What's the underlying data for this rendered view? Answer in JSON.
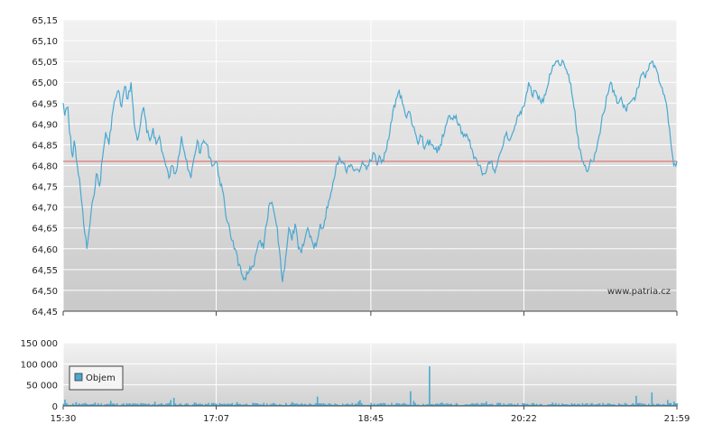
{
  "watermark": "www.patria.cz",
  "colors": {
    "price_line": "#4aa8d0",
    "reference_line": "#e06060",
    "volume_bar": "#4aa8d0",
    "grid": "#ffffff"
  },
  "chart_data": [
    {
      "type": "line",
      "name": "price",
      "title": "",
      "xlabel": "",
      "ylabel": "",
      "x_tick_labels": [
        "15:30",
        "17:07",
        "18:45",
        "20:22",
        "21:59"
      ],
      "y_tick_labels": [
        "65,15",
        "65,10",
        "65,05",
        "65,00",
        "64,95",
        "64,90",
        "64,85",
        "64,80",
        "64,75",
        "64,70",
        "64,65",
        "64,60",
        "64,55",
        "64,50",
        "64,45"
      ],
      "ylim": [
        64.45,
        65.15
      ],
      "reference_value": 64.81,
      "grid": true,
      "points": [
        [
          "15:30",
          64.95
        ],
        [
          "15:31",
          64.92
        ],
        [
          "15:33",
          64.94
        ],
        [
          "15:34",
          64.88
        ],
        [
          "15:36",
          64.82
        ],
        [
          "15:37",
          64.86
        ],
        [
          "15:39",
          64.8
        ],
        [
          "15:41",
          64.74
        ],
        [
          "15:43",
          64.66
        ],
        [
          "15:45",
          64.6
        ],
        [
          "15:47",
          64.66
        ],
        [
          "15:49",
          64.72
        ],
        [
          "15:51",
          64.78
        ],
        [
          "15:53",
          64.75
        ],
        [
          "15:55",
          64.82
        ],
        [
          "15:57",
          64.88
        ],
        [
          "15:59",
          64.85
        ],
        [
          "16:01",
          64.92
        ],
        [
          "16:03",
          64.96
        ],
        [
          "16:05",
          64.98
        ],
        [
          "16:07",
          64.94
        ],
        [
          "16:09",
          64.99
        ],
        [
          "16:11",
          64.96
        ],
        [
          "16:13",
          65.0
        ],
        [
          "16:15",
          64.9
        ],
        [
          "16:17",
          64.86
        ],
        [
          "16:19",
          64.9
        ],
        [
          "16:21",
          64.94
        ],
        [
          "16:23",
          64.88
        ],
        [
          "16:25",
          64.86
        ],
        [
          "16:27",
          64.89
        ],
        [
          "16:29",
          64.85
        ],
        [
          "16:31",
          64.87
        ],
        [
          "16:33",
          64.83
        ],
        [
          "16:35",
          64.8
        ],
        [
          "16:37",
          64.77
        ],
        [
          "16:39",
          64.8
        ],
        [
          "16:41",
          64.78
        ],
        [
          "16:43",
          64.82
        ],
        [
          "16:45",
          64.87
        ],
        [
          "16:47",
          64.83
        ],
        [
          "16:49",
          64.79
        ],
        [
          "16:51",
          64.77
        ],
        [
          "16:53",
          64.82
        ],
        [
          "16:55",
          64.86
        ],
        [
          "16:57",
          64.83
        ],
        [
          "16:59",
          64.86
        ],
        [
          "17:01",
          64.85
        ],
        [
          "17:03",
          64.82
        ],
        [
          "17:05",
          64.8
        ],
        [
          "17:07",
          64.81
        ],
        [
          "17:09",
          64.77
        ],
        [
          "17:11",
          64.74
        ],
        [
          "17:13",
          64.68
        ],
        [
          "17:15",
          64.66
        ],
        [
          "17:17",
          64.62
        ],
        [
          "17:19",
          64.6
        ],
        [
          "17:21",
          64.56
        ],
        [
          "17:23",
          64.54
        ],
        [
          "17:25",
          64.53
        ],
        [
          "17:27",
          64.54
        ],
        [
          "17:29",
          64.55
        ],
        [
          "17:31",
          64.56
        ],
        [
          "17:33",
          64.6
        ],
        [
          "17:35",
          64.62
        ],
        [
          "17:37",
          64.6
        ],
        [
          "17:39",
          64.66
        ],
        [
          "17:41",
          64.71
        ],
        [
          "17:43",
          64.7
        ],
        [
          "17:45",
          64.66
        ],
        [
          "17:47",
          64.6
        ],
        [
          "17:49",
          64.52
        ],
        [
          "17:51",
          64.58
        ],
        [
          "17:53",
          64.65
        ],
        [
          "17:55",
          64.62
        ],
        [
          "17:57",
          64.66
        ],
        [
          "17:59",
          64.6
        ],
        [
          "18:01",
          64.59
        ],
        [
          "18:03",
          64.62
        ],
        [
          "18:05",
          64.65
        ],
        [
          "18:07",
          64.63
        ],
        [
          "18:09",
          64.6
        ],
        [
          "18:11",
          64.62
        ],
        [
          "18:13",
          64.66
        ],
        [
          "18:15",
          64.65
        ],
        [
          "18:17",
          64.7
        ],
        [
          "18:19",
          64.72
        ],
        [
          "18:21",
          64.76
        ],
        [
          "18:23",
          64.8
        ],
        [
          "18:25",
          64.82
        ],
        [
          "18:27",
          64.81
        ],
        [
          "18:29",
          64.79
        ],
        [
          "18:31",
          64.8
        ],
        [
          "18:33",
          64.8
        ],
        [
          "18:35",
          64.79
        ],
        [
          "18:37",
          64.79
        ],
        [
          "18:39",
          64.8
        ],
        [
          "18:41",
          64.8
        ],
        [
          "18:43",
          64.8
        ],
        [
          "18:45",
          64.81
        ],
        [
          "18:47",
          64.83
        ],
        [
          "18:49",
          64.8
        ],
        [
          "18:51",
          64.82
        ],
        [
          "18:53",
          64.81
        ],
        [
          "18:55",
          64.84
        ],
        [
          "18:57",
          64.88
        ],
        [
          "18:59",
          64.93
        ],
        [
          "19:01",
          64.96
        ],
        [
          "19:03",
          64.98
        ],
        [
          "19:05",
          64.95
        ],
        [
          "19:07",
          64.92
        ],
        [
          "19:09",
          64.93
        ],
        [
          "19:11",
          64.9
        ],
        [
          "19:13",
          64.88
        ],
        [
          "19:15",
          64.85
        ],
        [
          "19:17",
          64.87
        ],
        [
          "19:19",
          64.84
        ],
        [
          "19:21",
          64.86
        ],
        [
          "19:23",
          64.85
        ],
        [
          "19:25",
          64.84
        ],
        [
          "19:27",
          64.83
        ],
        [
          "19:29",
          64.85
        ],
        [
          "19:31",
          64.87
        ],
        [
          "19:33",
          64.9
        ],
        [
          "19:35",
          64.92
        ],
        [
          "19:37",
          64.91
        ],
        [
          "19:39",
          64.92
        ],
        [
          "19:41",
          64.9
        ],
        [
          "19:43",
          64.88
        ],
        [
          "19:45",
          64.87
        ],
        [
          "19:47",
          64.86
        ],
        [
          "19:49",
          64.84
        ],
        [
          "19:51",
          64.82
        ],
        [
          "19:53",
          64.8
        ],
        [
          "19:55",
          64.79
        ],
        [
          "19:57",
          64.78
        ],
        [
          "19:59",
          64.8
        ],
        [
          "20:01",
          64.81
        ],
        [
          "20:03",
          64.79
        ],
        [
          "20:05",
          64.8
        ],
        [
          "20:07",
          64.83
        ],
        [
          "20:09",
          64.85
        ],
        [
          "20:11",
          64.88
        ],
        [
          "20:13",
          64.86
        ],
        [
          "20:15",
          64.88
        ],
        [
          "20:17",
          64.9
        ],
        [
          "20:19",
          64.92
        ],
        [
          "20:21",
          64.94
        ],
        [
          "20:23",
          64.96
        ],
        [
          "20:25",
          65.0
        ],
        [
          "20:27",
          64.97
        ],
        [
          "20:29",
          64.98
        ],
        [
          "20:31",
          64.96
        ],
        [
          "20:33",
          64.95
        ],
        [
          "20:35",
          64.97
        ],
        [
          "20:37",
          64.99
        ],
        [
          "20:39",
          65.02
        ],
        [
          "20:41",
          65.04
        ],
        [
          "20:43",
          65.05
        ],
        [
          "20:45",
          65.04
        ],
        [
          "20:47",
          65.05
        ],
        [
          "20:49",
          65.03
        ],
        [
          "20:51",
          65.0
        ],
        [
          "20:53",
          64.96
        ],
        [
          "20:55",
          64.9
        ],
        [
          "20:57",
          64.84
        ],
        [
          "20:59",
          64.81
        ],
        [
          "21:01",
          64.8
        ],
        [
          "21:03",
          64.79
        ],
        [
          "21:05",
          64.81
        ],
        [
          "21:07",
          64.83
        ],
        [
          "21:09",
          64.86
        ],
        [
          "21:11",
          64.9
        ],
        [
          "21:13",
          64.93
        ],
        [
          "21:15",
          64.97
        ],
        [
          "21:17",
          65.0
        ],
        [
          "21:19",
          64.98
        ],
        [
          "21:21",
          64.95
        ],
        [
          "21:23",
          64.96
        ],
        [
          "21:25",
          64.94
        ],
        [
          "21:27",
          64.93
        ],
        [
          "21:29",
          64.95
        ],
        [
          "21:31",
          64.96
        ],
        [
          "21:33",
          64.97
        ],
        [
          "21:35",
          64.99
        ],
        [
          "21:37",
          65.02
        ],
        [
          "21:39",
          65.01
        ],
        [
          "21:41",
          65.03
        ],
        [
          "21:43",
          65.05
        ],
        [
          "21:45",
          65.04
        ],
        [
          "21:47",
          65.02
        ],
        [
          "21:49",
          64.99
        ],
        [
          "21:51",
          64.97
        ],
        [
          "21:53",
          64.93
        ],
        [
          "21:55",
          64.86
        ],
        [
          "21:57",
          64.8
        ],
        [
          "21:59",
          64.81
        ]
      ]
    },
    {
      "type": "bar",
      "name": "volume",
      "legend_label": "Objem",
      "legend_position": "left",
      "x_tick_labels": [
        "15:30",
        "17:07",
        "18:45",
        "20:22",
        "21:59"
      ],
      "y_tick_labels": [
        "150 000",
        "100 000",
        "50 000",
        "0"
      ],
      "ylim": [
        0,
        150000
      ],
      "grid": true,
      "base_level": 4000,
      "spikes": [
        [
          "15:31",
          15000
        ],
        [
          "15:38",
          9000
        ],
        [
          "15:50",
          8000
        ],
        [
          "16:00",
          12000
        ],
        [
          "16:28",
          10000
        ],
        [
          "16:38",
          14000
        ],
        [
          "16:40",
          19000
        ],
        [
          "16:53",
          8000
        ],
        [
          "17:05",
          7000
        ],
        [
          "17:20",
          9000
        ],
        [
          "17:55",
          9000
        ],
        [
          "18:11",
          22000
        ],
        [
          "18:13",
          6000
        ],
        [
          "18:37",
          10000
        ],
        [
          "18:38",
          14000
        ],
        [
          "19:10",
          35000
        ],
        [
          "19:12",
          12000
        ],
        [
          "19:22",
          94000
        ],
        [
          "19:30",
          8000
        ],
        [
          "19:58",
          10000
        ],
        [
          "20:40",
          8000
        ],
        [
          "21:10",
          6000
        ],
        [
          "21:33",
          24000
        ],
        [
          "21:43",
          32000
        ],
        [
          "21:53",
          14000
        ],
        [
          "21:57",
          10000
        ]
      ]
    }
  ]
}
